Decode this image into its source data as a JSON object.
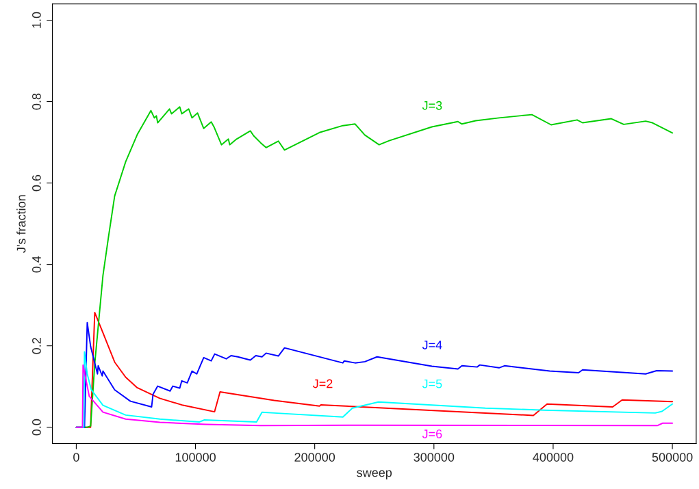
{
  "chart_data": {
    "type": "line",
    "xlabel": "sweep",
    "ylabel": "J's fraction",
    "xlim": [
      -20000,
      520000
    ],
    "ylim": [
      -0.04,
      1.04
    ],
    "xticks": [
      0,
      100000,
      200000,
      300000,
      400000,
      500000
    ],
    "yticks": [
      {
        "value": 0,
        "label": "0.0"
      },
      {
        "value": 0.2,
        "label": "0.2"
      },
      {
        "value": 0.4,
        "label": "0.4"
      },
      {
        "value": 0.6,
        "label": "0.6"
      },
      {
        "value": 0.8,
        "label": "0.8"
      },
      {
        "value": 1.0,
        "label": "1.0"
      }
    ],
    "grid": false,
    "legend": false,
    "marker": "none",
    "line_style": "solid",
    "series": [
      {
        "name": "J=2",
        "color": "#ff0000",
        "x": [
          0,
          12000,
          15500,
          22400,
          32200,
          41400,
          51150,
          70000,
          89600,
          116000,
          120600,
          166100,
          204000,
          205200,
          383400,
          394900,
          449900,
          457900,
          500000
        ],
        "values": [
          0,
          0,
          0.282,
          0.232,
          0.16,
          0.123,
          0.097,
          0.071,
          0.054,
          0.038,
          0.087,
          0.066,
          0.052,
          0.055,
          0.029,
          0.057,
          0.05,
          0.067,
          0.063
        ]
      },
      {
        "name": "J=3",
        "color": "#00cd00",
        "x": [
          0,
          9200,
          12070,
          15500,
          22400,
          27000,
          32200,
          41400,
          51150,
          62600,
          65500,
          67200,
          68300,
          78200,
          79900,
          86800,
          88500,
          94300,
          97100,
          101700,
          106900,
          113200,
          115500,
          121800,
          127600,
          128700,
          134500,
          146000,
          148800,
          154600,
          159200,
          169500,
          174700,
          204000,
          223600,
          233900,
          242000,
          254000,
          262600,
          298300,
          320100,
          323500,
          335000,
          354600,
          382200,
          398300,
          420100,
          424700,
          448800,
          459200,
          477600,
          483300,
          500000
        ],
        "values": [
          0,
          0,
          0.003,
          0.156,
          0.373,
          0.467,
          0.568,
          0.652,
          0.719,
          0.778,
          0.76,
          0.765,
          0.748,
          0.782,
          0.77,
          0.787,
          0.77,
          0.782,
          0.76,
          0.772,
          0.734,
          0.75,
          0.738,
          0.694,
          0.708,
          0.694,
          0.708,
          0.728,
          0.716,
          0.699,
          0.687,
          0.703,
          0.681,
          0.724,
          0.741,
          0.745,
          0.718,
          0.694,
          0.704,
          0.738,
          0.751,
          0.745,
          0.753,
          0.76,
          0.768,
          0.743,
          0.755,
          0.748,
          0.758,
          0.744,
          0.752,
          0.748,
          0.723
        ]
      },
      {
        "name": "J=4",
        "color": "#0000ff",
        "x": [
          0,
          6900,
          9200,
          12070,
          17800,
          18400,
          21800,
          22400,
          32200,
          45400,
          63200,
          64400,
          68300,
          78700,
          81000,
          86800,
          88500,
          93100,
          97100,
          101100,
          106900,
          113200,
          116100,
          125800,
          129800,
          135500,
          146000,
          150600,
          155800,
          159200,
          169500,
          174700,
          223600,
          224700,
          233900,
          242000,
          252300,
          298300,
          320100,
          323500,
          336200,
          338500,
          354600,
          359200,
          397100,
          421300,
          424700,
          477600,
          486800,
          500000
        ],
        "values": [
          0,
          0,
          0.257,
          0.198,
          0.131,
          0.151,
          0.126,
          0.138,
          0.092,
          0.064,
          0.05,
          0.081,
          0.101,
          0.089,
          0.101,
          0.096,
          0.114,
          0.109,
          0.138,
          0.131,
          0.171,
          0.163,
          0.18,
          0.168,
          0.176,
          0.173,
          0.165,
          0.176,
          0.173,
          0.182,
          0.175,
          0.195,
          0.158,
          0.163,
          0.158,
          0.161,
          0.173,
          0.15,
          0.143,
          0.151,
          0.148,
          0.153,
          0.146,
          0.151,
          0.138,
          0.134,
          0.141,
          0.131,
          0.139,
          0.138
        ]
      },
      {
        "name": "J=5",
        "color": "#00ffff",
        "x": [
          0,
          6300,
          6900,
          9200,
          12600,
          22400,
          41400,
          70100,
          103400,
          107500,
          151200,
          155800,
          166100,
          223600,
          231600,
          253500,
          343200,
          392600,
          485600,
          491300,
          500000
        ],
        "values": [
          0,
          0,
          0.185,
          0.131,
          0.092,
          0.054,
          0.03,
          0.02,
          0.013,
          0.018,
          0.013,
          0.037,
          0.035,
          0.025,
          0.047,
          0.062,
          0.047,
          0.042,
          0.035,
          0.039,
          0.057
        ]
      },
      {
        "name": "J=6",
        "color": "#ff00ff",
        "x": [
          0,
          5200,
          5700,
          10900,
          22400,
          41400,
          70100,
          108600,
          154600,
          240300,
          487300,
          491900,
          500000
        ],
        "values": [
          0,
          0,
          0.153,
          0.076,
          0.037,
          0.02,
          0.012,
          0.007,
          0.004,
          0.005,
          0.004,
          0.01,
          0.01
        ]
      }
    ]
  }
}
